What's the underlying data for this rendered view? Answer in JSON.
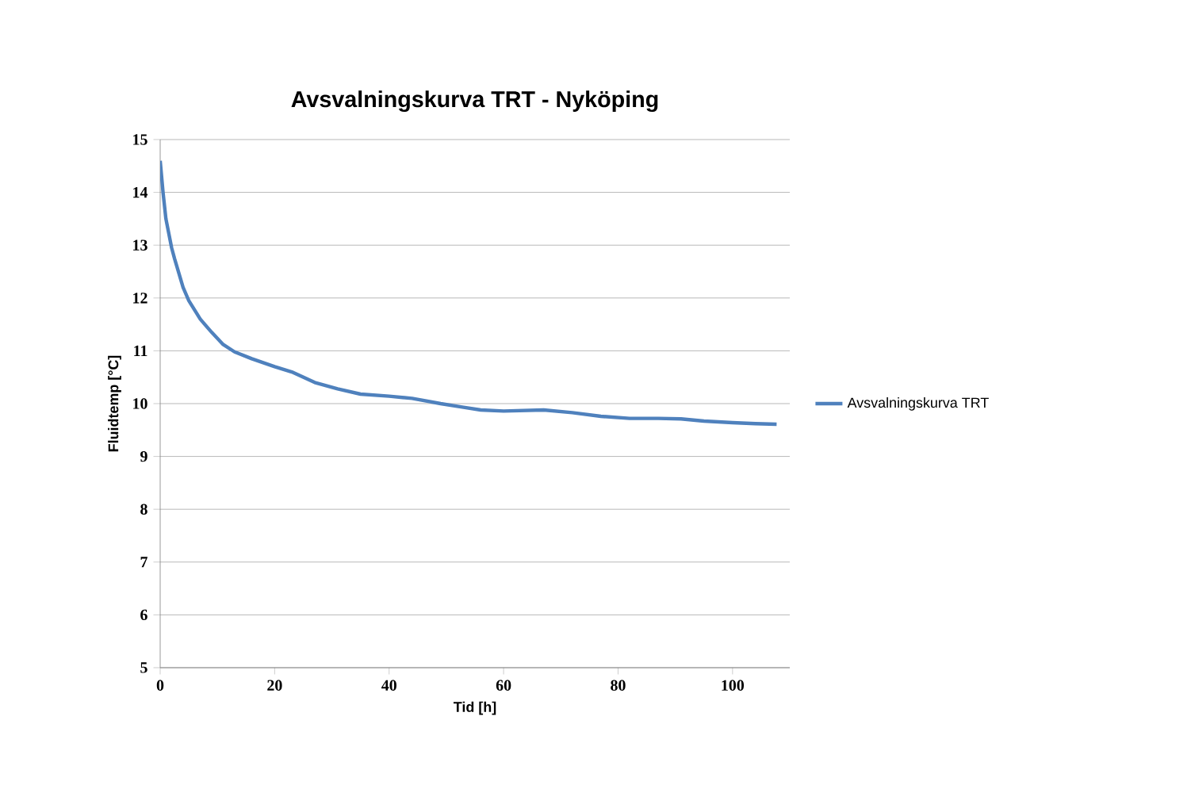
{
  "chart_data": {
    "type": "line",
    "title": "Avsvalningskurva TRT  - Nyköping",
    "xlabel": "Tid [h]",
    "ylabel": "Fluidtemp [°C]",
    "xlim": [
      0,
      110
    ],
    "xticks": [
      0,
      20,
      40,
      60,
      80,
      100
    ],
    "ylim": [
      5,
      15
    ],
    "yticks": [
      5,
      6,
      7,
      8,
      9,
      10,
      11,
      12,
      13,
      14,
      15
    ],
    "grid": "y",
    "legend": "right",
    "marker": "none",
    "line_style": "solid",
    "series": [
      {
        "name": "Avsvalningskurva TRT",
        "color": "#4f81bd",
        "x": [
          0,
          0.5,
          1,
          2,
          2.5,
          4,
          5,
          7,
          9,
          11,
          13,
          16,
          20,
          23,
          27,
          31,
          35,
          40,
          44,
          49,
          53,
          56,
          60,
          67,
          72,
          77,
          82,
          87,
          91,
          95,
          100,
          104,
          107.7
        ],
        "values": [
          14.6,
          14.0,
          13.5,
          12.95,
          12.75,
          12.2,
          11.95,
          11.6,
          11.35,
          11.12,
          10.98,
          10.85,
          10.7,
          10.6,
          10.4,
          10.28,
          10.18,
          10.14,
          10.1,
          10.0,
          9.93,
          9.88,
          9.86,
          9.88,
          9.83,
          9.76,
          9.72,
          9.72,
          9.71,
          9.67,
          9.64,
          9.62,
          9.61
        ]
      }
    ]
  }
}
